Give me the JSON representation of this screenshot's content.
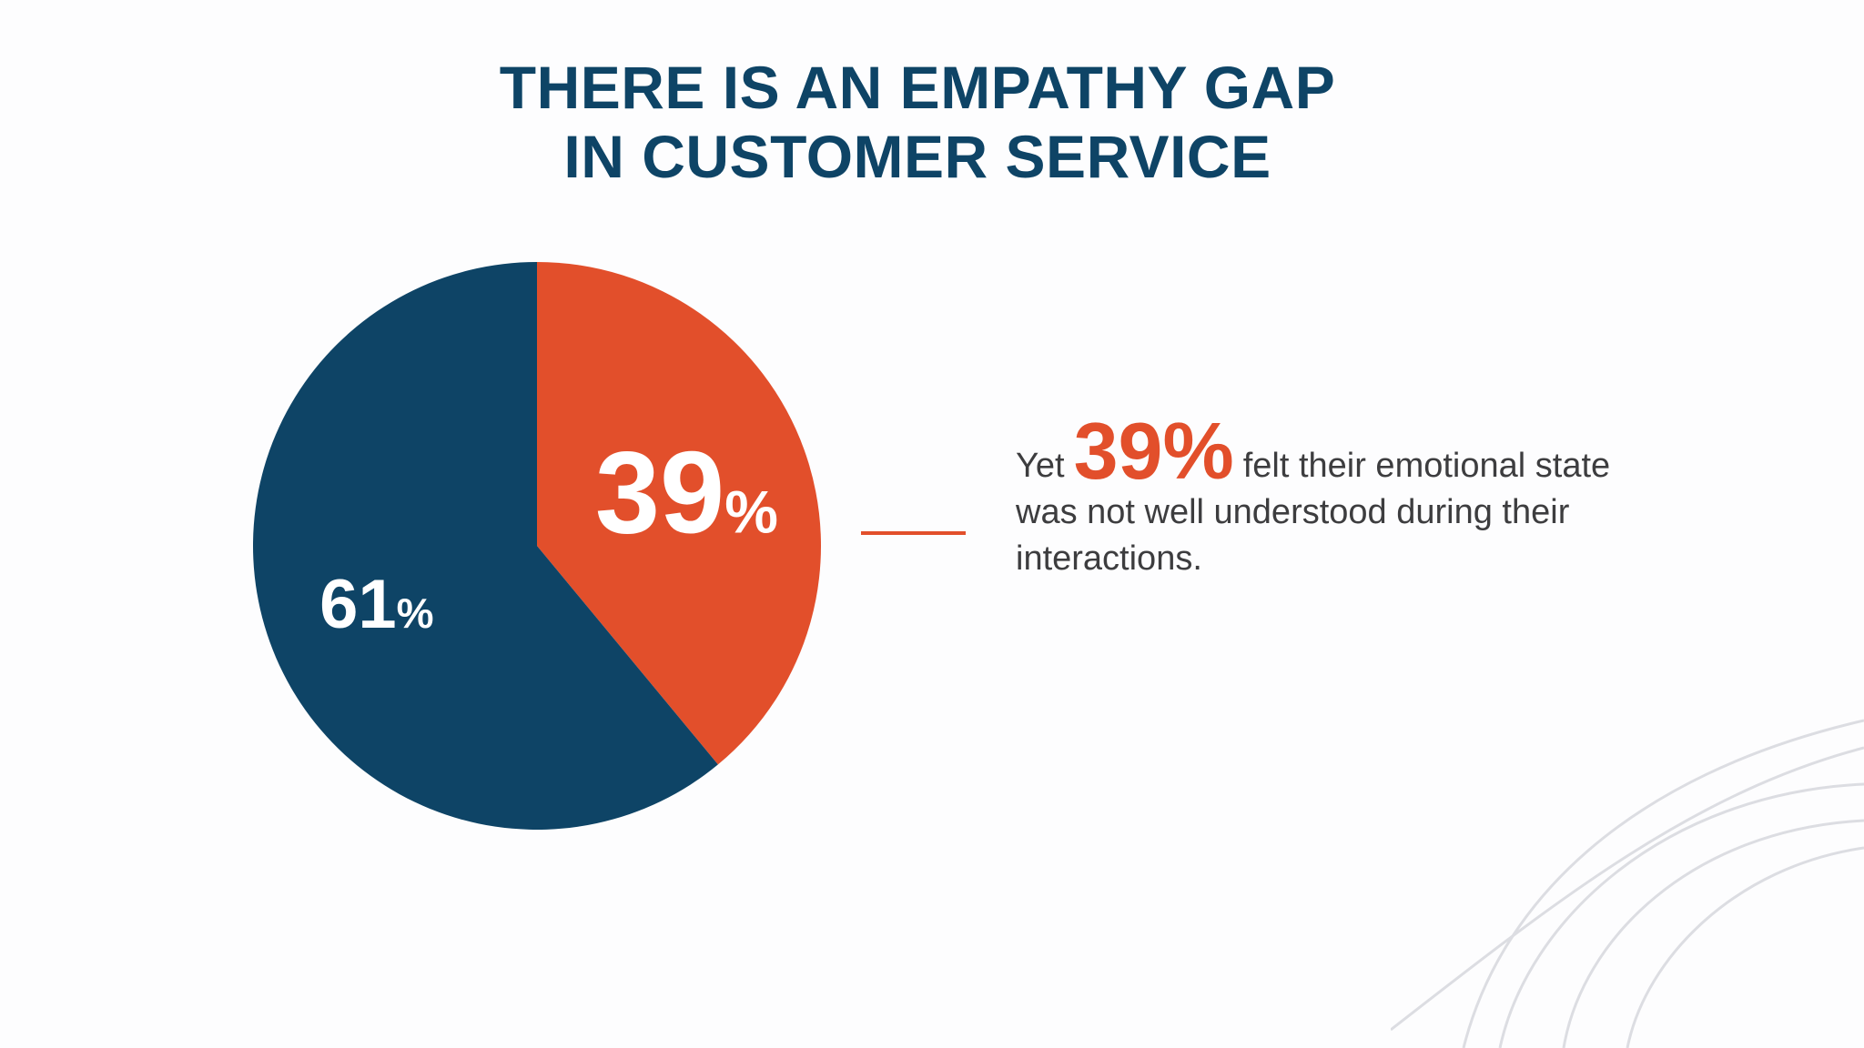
{
  "title": {
    "line1": "THERE IS AN EMPATHY GAP",
    "line2": "IN CUSTOMER SERVICE"
  },
  "callout": {
    "prefix": "Yet",
    "highlight": "39%",
    "suffix": "felt their emotional state was not well understood during their interactions."
  },
  "colors": {
    "navy": "#0e4466",
    "orange": "#e24f2b",
    "background": "#fdfdfe"
  },
  "chart_data": {
    "type": "pie",
    "slices": [
      {
        "label": "39%",
        "value": 39,
        "color": "#e24f2b"
      },
      {
        "label": "61%",
        "value": 61,
        "color": "#0e4466"
      }
    ],
    "start": "12 o'clock",
    "direction": "clockwise"
  }
}
